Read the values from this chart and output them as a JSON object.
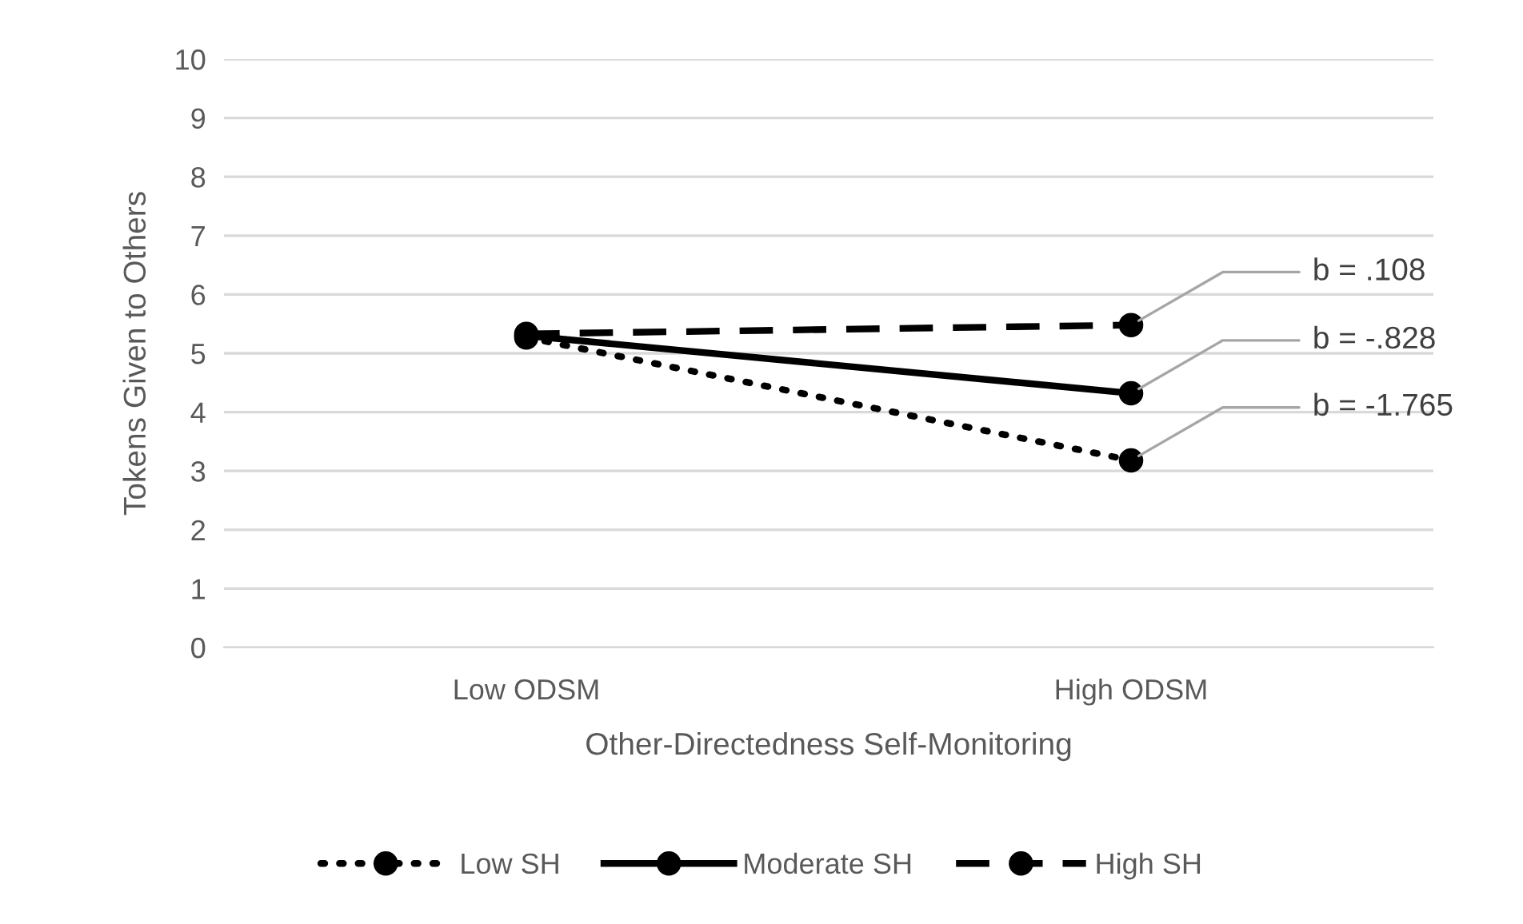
{
  "chart_data": {
    "type": "line",
    "xlabel": "Other-Directedness Self-Monitoring",
    "ylabel": "Tokens Given to Others",
    "categories": [
      "Low ODSM",
      "High ODSM"
    ],
    "series": [
      {
        "name": "Low SH",
        "color": "#000000",
        "line_style": "dotted",
        "values": [
          5.27,
          3.18
        ]
      },
      {
        "name": "Moderate SH",
        "color": "#000000",
        "line_style": "solid",
        "values": [
          5.3,
          4.32
        ]
      },
      {
        "name": "High SH",
        "color": "#000000",
        "line_style": "dashed",
        "values": [
          5.33,
          5.48
        ]
      }
    ],
    "ylim": [
      0,
      10
    ],
    "yticks": [
      0,
      1,
      2,
      3,
      4,
      5,
      6,
      7,
      8,
      9,
      10
    ],
    "grid": "y",
    "legend": "bottom",
    "marker": "circle",
    "annotations": [
      {
        "text": "b = .108",
        "x": "High ODSM",
        "y": 5.48
      },
      {
        "text": "b = -.828",
        "x": "High ODSM",
        "y": 4.32
      },
      {
        "text": "b = -1.765",
        "x": "High ODSM",
        "y": 3.18
      }
    ]
  }
}
